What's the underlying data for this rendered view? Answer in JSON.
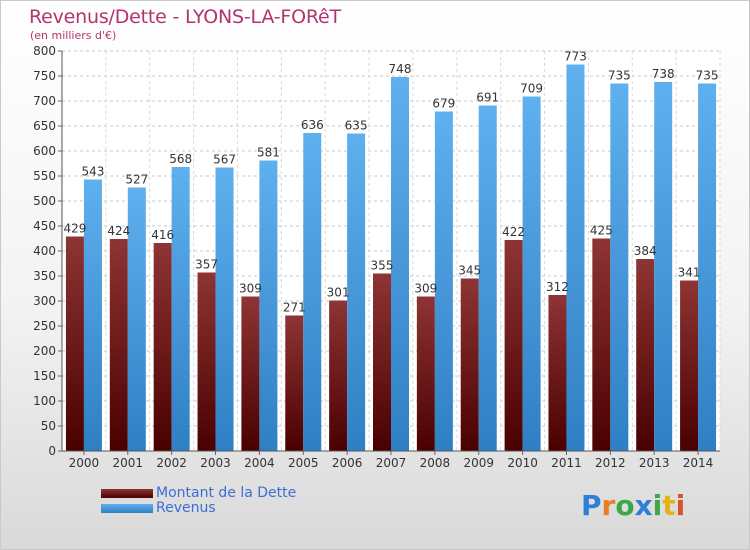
{
  "header": {
    "title": "Revenus/Dette - LYONS-LA-FORêT",
    "subtitle": "(en milliers d'€)"
  },
  "legend": {
    "items": [
      {
        "label": "Montant de la Dette",
        "color": "#6b0a0a"
      },
      {
        "label": "Revenus",
        "color": "#4aa3e6"
      }
    ]
  },
  "logo": {
    "text": "Proxiti",
    "letters": [
      "P",
      "r",
      "o",
      "x",
      "i",
      "t",
      "i"
    ],
    "colors": [
      "#2f7fd6",
      "#e67e22",
      "#3aa84a",
      "#2f7fd6",
      "#3aa84a",
      "#e6b21a",
      "#d9532b"
    ]
  },
  "chart_data": {
    "type": "bar",
    "categories": [
      "2000",
      "2001",
      "2002",
      "2003",
      "2004",
      "2005",
      "2006",
      "2007",
      "2008",
      "2009",
      "2010",
      "2011",
      "2012",
      "2013",
      "2014"
    ],
    "series": [
      {
        "name": "Montant de la Dette",
        "values": [
          429,
          424,
          416,
          357,
          309,
          271,
          301,
          355,
          309,
          345,
          422,
          312,
          425,
          384,
          341
        ],
        "color": "#7a1e1e"
      },
      {
        "name": "Revenus",
        "values": [
          543,
          527,
          568,
          567,
          581,
          636,
          635,
          748,
          679,
          691,
          709,
          773,
          735,
          738,
          735
        ],
        "color": "#4aa3e6"
      }
    ],
    "yticks": [
      0,
      50,
      100,
      150,
      200,
      250,
      300,
      350,
      400,
      450,
      500,
      550,
      600,
      650,
      700,
      750,
      800
    ],
    "ylim": [
      0,
      800
    ],
    "grid": true,
    "legend": "bottom-left"
  }
}
